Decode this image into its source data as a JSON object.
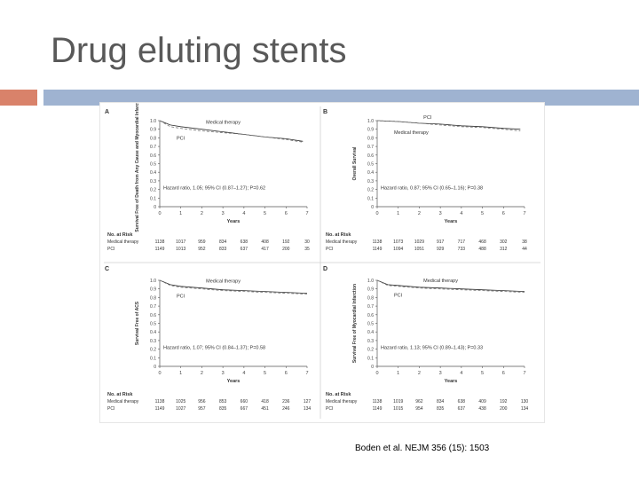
{
  "slide": {
    "title": "Drug eluting stents",
    "citation": "Boden et al. NEJM 356 (15): 1503",
    "accent_orange": "#d9826a",
    "accent_blue": "#9fb3d1"
  },
  "chart_data": [
    {
      "panel": "A",
      "type": "line",
      "ylabel": "Survival Free of Death from Any Cause and Myocardial Infarction",
      "xlabel": "Years",
      "xlim": [
        0,
        7
      ],
      "ylim": [
        0,
        1.0
      ],
      "xticks": [
        "0",
        "1",
        "2",
        "3",
        "4",
        "5",
        "6",
        "7"
      ],
      "yticks": [
        "0",
        "0.1",
        "0.2",
        "0.3",
        "0.4",
        "0.5",
        "0.6",
        "0.7",
        "0.8",
        "0.9",
        "1.0"
      ],
      "series": [
        {
          "name": "Medical therapy",
          "x": [
            0,
            0.5,
            1,
            2,
            3,
            4,
            5,
            6,
            6.8
          ],
          "y": [
            1.0,
            0.95,
            0.93,
            0.9,
            0.87,
            0.84,
            0.81,
            0.79,
            0.76
          ]
        },
        {
          "name": "PCI",
          "x": [
            0,
            0.5,
            1,
            2,
            3,
            4,
            5,
            6,
            6.8
          ],
          "y": [
            1.0,
            0.93,
            0.91,
            0.88,
            0.86,
            0.84,
            0.81,
            0.78,
            0.75
          ]
        }
      ],
      "annotation": "Hazard ratio, 1.05; 95% CI (0.87–1.27); P=0.62",
      "risk_header": "No. at Risk",
      "risk_rows": [
        {
          "label": "Medical therapy",
          "values": [
            "1138",
            "1017",
            "959",
            "834",
            "638",
            "408",
            "192",
            "30"
          ]
        },
        {
          "label": "PCI",
          "values": [
            "1149",
            "1013",
            "952",
            "833",
            "637",
            "417",
            "200",
            "35"
          ]
        }
      ]
    },
    {
      "panel": "B",
      "type": "line",
      "ylabel": "Overall Survival",
      "xlabel": "Years",
      "xlim": [
        0,
        7
      ],
      "ylim": [
        0,
        1.0
      ],
      "xticks": [
        "0",
        "1",
        "2",
        "3",
        "4",
        "5",
        "6",
        "7"
      ],
      "yticks": [
        "0",
        "0.1",
        "0.2",
        "0.3",
        "0.4",
        "0.5",
        "0.6",
        "0.7",
        "0.8",
        "0.9",
        "1.0"
      ],
      "series": [
        {
          "name": "PCI",
          "x": [
            0,
            1,
            2,
            3,
            4,
            5,
            6,
            6.8
          ],
          "y": [
            1.0,
            0.99,
            0.97,
            0.96,
            0.94,
            0.93,
            0.91,
            0.9
          ]
        },
        {
          "name": "Medical therapy",
          "x": [
            0,
            1,
            2,
            3,
            4,
            5,
            6,
            6.8
          ],
          "y": [
            1.0,
            0.99,
            0.97,
            0.95,
            0.93,
            0.92,
            0.9,
            0.88
          ]
        }
      ],
      "annotation": "Hazard ratio, 0.87; 95% CI (0.65–1.16); P=0.38",
      "risk_header": "No. at Risk",
      "risk_rows": [
        {
          "label": "Medical therapy",
          "values": [
            "1138",
            "1073",
            "1029",
            "917",
            "717",
            "468",
            "302",
            "38"
          ]
        },
        {
          "label": "PCI",
          "values": [
            "1149",
            "1094",
            "1051",
            "929",
            "733",
            "488",
            "312",
            "44"
          ]
        }
      ]
    },
    {
      "panel": "C",
      "type": "line",
      "ylabel": "Survival Free of ACS",
      "xlabel": "Years",
      "xlim": [
        0,
        7
      ],
      "ylim": [
        0,
        1.0
      ],
      "xticks": [
        "0",
        "1",
        "2",
        "3",
        "4",
        "5",
        "6",
        "7"
      ],
      "yticks": [
        "0",
        "0.1",
        "0.2",
        "0.3",
        "0.4",
        "0.5",
        "0.6",
        "0.7",
        "0.8",
        "0.9",
        "1.0"
      ],
      "series": [
        {
          "name": "Medical therapy",
          "x": [
            0,
            0.5,
            1,
            2,
            3,
            4,
            5,
            6,
            7
          ],
          "y": [
            1.0,
            0.95,
            0.93,
            0.91,
            0.89,
            0.88,
            0.87,
            0.86,
            0.85
          ]
        },
        {
          "name": "PCI",
          "x": [
            0,
            0.5,
            1,
            2,
            3,
            4,
            5,
            6,
            7
          ],
          "y": [
            1.0,
            0.94,
            0.92,
            0.9,
            0.88,
            0.87,
            0.86,
            0.85,
            0.84
          ]
        }
      ],
      "annotation": "Hazard ratio, 1.07; 95% CI (0.84–1.37); P=0.58",
      "risk_header": "No. at Risk",
      "risk_rows": [
        {
          "label": "Medical therapy",
          "values": [
            "1138",
            "1025",
            "956",
            "853",
            "660",
            "418",
            "236",
            "127"
          ]
        },
        {
          "label": "PCI",
          "values": [
            "1149",
            "1027",
            "957",
            "835",
            "667",
            "451",
            "246",
            "134"
          ]
        }
      ]
    },
    {
      "panel": "D",
      "type": "line",
      "ylabel": "Survival Free of Myocardial Infarction",
      "xlabel": "Years",
      "xlim": [
        0,
        7
      ],
      "ylim": [
        0,
        1.0
      ],
      "xticks": [
        "0",
        "1",
        "2",
        "3",
        "4",
        "5",
        "6",
        "7"
      ],
      "yticks": [
        "0",
        "0.1",
        "0.2",
        "0.3",
        "0.4",
        "0.5",
        "0.6",
        "0.7",
        "0.8",
        "0.9",
        "1.0"
      ],
      "series": [
        {
          "name": "Medical therapy",
          "x": [
            0,
            0.5,
            1,
            2,
            3,
            4,
            5,
            6,
            7
          ],
          "y": [
            1.0,
            0.95,
            0.94,
            0.92,
            0.91,
            0.9,
            0.89,
            0.88,
            0.87
          ]
        },
        {
          "name": "PCI",
          "x": [
            0,
            0.5,
            1,
            2,
            3,
            4,
            5,
            6,
            7
          ],
          "y": [
            1.0,
            0.94,
            0.93,
            0.91,
            0.9,
            0.89,
            0.88,
            0.87,
            0.86
          ]
        }
      ],
      "annotation": "Hazard ratio, 1.13; 95% CI (0.89–1.43); P=0.33",
      "risk_header": "No. at Risk",
      "risk_rows": [
        {
          "label": "Medical therapy",
          "values": [
            "1138",
            "1019",
            "962",
            "834",
            "638",
            "409",
            "192",
            "130"
          ]
        },
        {
          "label": "PCI",
          "values": [
            "1149",
            "1015",
            "954",
            "835",
            "637",
            "438",
            "200",
            "134"
          ]
        }
      ]
    }
  ]
}
